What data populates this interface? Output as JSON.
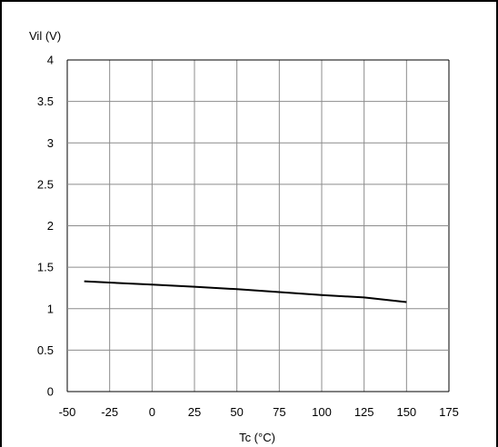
{
  "chart_data": {
    "type": "line",
    "title": "",
    "ylabel": "Vil (V)",
    "xlabel": "Tc (°C)",
    "xlim": [
      -50,
      175
    ],
    "ylim": [
      0,
      4
    ],
    "xticks": [
      -50,
      -25,
      0,
      25,
      50,
      75,
      100,
      125,
      150,
      175
    ],
    "yticks": [
      0,
      0.5,
      1,
      1.5,
      2,
      2.5,
      3,
      3.5,
      4
    ],
    "xtick_labels": [
      "-50",
      "-25",
      "0",
      "25",
      "50",
      "75",
      "100",
      "125",
      "150",
      "175"
    ],
    "ytick_labels": [
      "0",
      "0.5",
      "1",
      "1.5",
      "2",
      "2.5",
      "3",
      "3.5",
      "4"
    ],
    "grid": true,
    "series": [
      {
        "color": "#000000",
        "x": [
          -40,
          0,
          25,
          50,
          75,
          100,
          125,
          150
        ],
        "y": [
          1.33,
          1.29,
          1.265,
          1.235,
          1.2,
          1.165,
          1.135,
          1.08
        ]
      }
    ]
  }
}
